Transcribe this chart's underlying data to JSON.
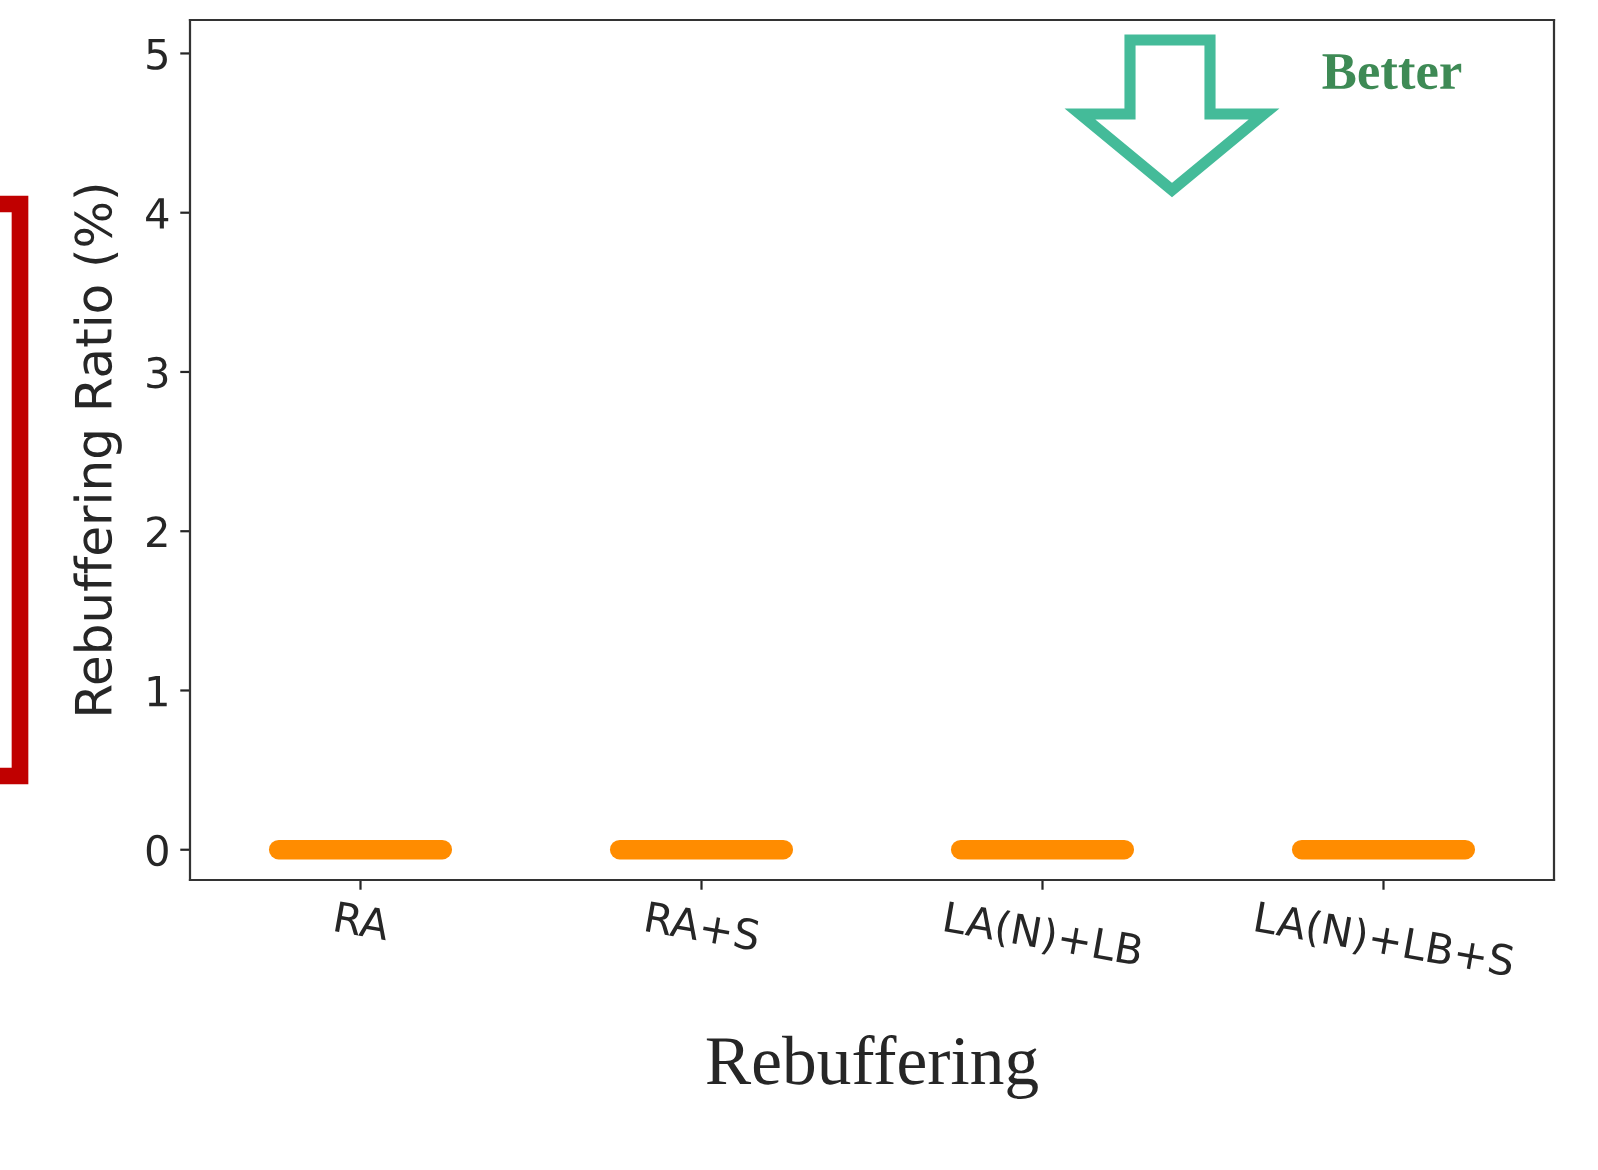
{
  "chart_data": {
    "type": "box",
    "xlabel": "Rebuffering",
    "ylabel": "Rebuffering Ratio (%)",
    "categories": [
      "RA",
      "RA+S",
      "LA(N)+LB",
      "LA(N)+LB+S"
    ],
    "boxes": [
      {
        "low": 0,
        "q1": 0,
        "median": 0,
        "q3": 0,
        "high": 0
      },
      {
        "low": 0,
        "q1": 0,
        "median": 0,
        "q3": 0,
        "high": 0
      },
      {
        "low": 0,
        "q1": 0,
        "median": 0,
        "q3": 0,
        "high": 0
      },
      {
        "low": 0,
        "q1": 0,
        "median": 0,
        "q3": 0,
        "high": 0
      }
    ],
    "color": "#ff8c00",
    "ylim": [
      -0.19,
      5.21
    ],
    "yticks": [
      0,
      1,
      2,
      3,
      4,
      5
    ],
    "annotations": [
      "Better"
    ],
    "grid": false
  }
}
